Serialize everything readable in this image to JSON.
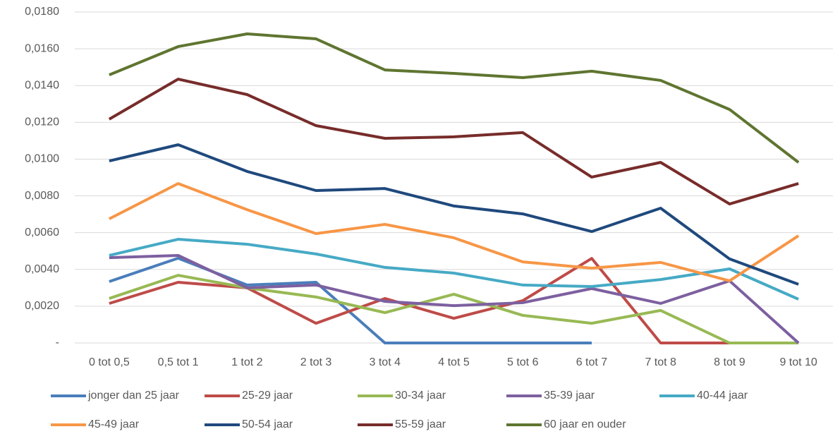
{
  "chart_data": {
    "type": "line",
    "categories": [
      "0 tot 0,5",
      "0,5 tot 1",
      "1 tot 2",
      "2 tot 3",
      "3 tot 4",
      "4 tot 5",
      "5 tot 6",
      "6 tot 7",
      "7 tot 8",
      "8 tot 9",
      "9 tot 10"
    ],
    "ylim": [
      0,
      0.018
    ],
    "yticks": [
      {
        "value": 0,
        "label": "-"
      },
      {
        "value": 0.002,
        "label": "0,0020"
      },
      {
        "value": 0.004,
        "label": "0,0040"
      },
      {
        "value": 0.006,
        "label": "0,0060"
      },
      {
        "value": 0.008,
        "label": "0,0080"
      },
      {
        "value": 0.01,
        "label": "0,0100"
      },
      {
        "value": 0.012,
        "label": "0,0120"
      },
      {
        "value": 0.014,
        "label": "0,0140"
      },
      {
        "value": 0.016,
        "label": "0,0160"
      },
      {
        "value": 0.018,
        "label": "0,0180"
      }
    ],
    "grid": true,
    "legend": "bottom",
    "series": [
      {
        "name": "jonger dan 25 jaar",
        "color": "#4a7ebb",
        "values": [
          0.00334,
          0.00461,
          0.00315,
          0.0033,
          0,
          0,
          0,
          0,
          null,
          null,
          null
        ]
      },
      {
        "name": "25-29 jaar",
        "color": "#be4b48",
        "values": [
          0.00215,
          0.0033,
          0.003,
          0.00107,
          0.00242,
          0.00134,
          0.0023,
          0.0046,
          0,
          0,
          null
        ]
      },
      {
        "name": "30-34 jaar",
        "color": "#98b954",
        "values": [
          0.00242,
          0.00368,
          0.003,
          0.0025,
          0.00165,
          0.00265,
          0.0015,
          0.00107,
          0.00177,
          0,
          0
        ]
      },
      {
        "name": "35-39 jaar",
        "color": "#7d60a0",
        "values": [
          0.00464,
          0.00476,
          0.003,
          0.00315,
          0.00226,
          0.00203,
          0.00219,
          0.00296,
          0.00215,
          0.00338,
          0
        ]
      },
      {
        "name": "40-44 jaar",
        "color": "#46aac5",
        "values": [
          0.00476,
          0.00564,
          0.00537,
          0.00484,
          0.00411,
          0.0038,
          0.00315,
          0.00307,
          0.00345,
          0.00403,
          0.00238
        ]
      },
      {
        "name": "45-49 jaar",
        "color": "#f79646",
        "values": [
          0.00675,
          0.00867,
          0.00725,
          0.00595,
          0.00645,
          0.00572,
          0.00441,
          0.00407,
          0.00438,
          0.00338,
          0.00583
        ]
      },
      {
        "name": "50-54 jaar",
        "color": "#1f497d",
        "values": [
          0.0099,
          0.01078,
          0.00933,
          0.00829,
          0.0084,
          0.00745,
          0.00702,
          0.00606,
          0.00733,
          0.00457,
          0.00319
        ]
      },
      {
        "name": "55-59 jaar",
        "color": "#772c2a",
        "values": [
          0.01217,
          0.01435,
          0.01351,
          0.01182,
          0.01113,
          0.01121,
          0.01144,
          0.00902,
          0.00982,
          0.00756,
          0.00867
        ]
      },
      {
        "name": "60 jaar en ouder",
        "color": "#5f7530",
        "values": [
          0.01458,
          0.01612,
          0.01681,
          0.01654,
          0.01485,
          0.01466,
          0.01443,
          0.01478,
          0.01428,
          0.0127,
          0.00982
        ]
      }
    ]
  }
}
